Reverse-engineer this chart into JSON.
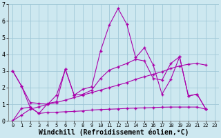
{
  "background_color": "#cde8f0",
  "grid_color": "#a0c8d8",
  "line_color": "#aa00aa",
  "marker": "+",
  "xlabel": "Windchill (Refroidissement éolien,°C)",
  "xlim": [
    -0.5,
    23.5
  ],
  "ylim": [
    0,
    7
  ],
  "xticks": [
    0,
    1,
    2,
    3,
    4,
    5,
    6,
    7,
    8,
    9,
    10,
    11,
    12,
    13,
    14,
    15,
    16,
    17,
    18,
    19,
    20,
    21,
    22,
    23
  ],
  "yticks": [
    0,
    1,
    2,
    3,
    4,
    5,
    6,
    7
  ],
  "series1": [
    3.0,
    2.1,
    0.8,
    0.45,
    1.05,
    1.15,
    3.1,
    1.55,
    1.9,
    2.05,
    4.2,
    5.75,
    6.75,
    5.8,
    3.8,
    4.4,
    3.35,
    1.6,
    2.5,
    3.85,
    1.5,
    1.6,
    0.7
  ],
  "series2": [
    3.0,
    2.1,
    1.1,
    1.05,
    1.0,
    1.55,
    3.1,
    1.55,
    1.6,
    1.85,
    2.55,
    3.05,
    3.25,
    3.45,
    3.7,
    3.6,
    2.55,
    2.45,
    3.45,
    3.85,
    1.5,
    1.6,
    0.7
  ],
  "series3": [
    0.0,
    0.75,
    0.82,
    0.45,
    0.5,
    0.52,
    0.55,
    0.57,
    0.6,
    0.65,
    0.68,
    0.7,
    0.72,
    0.75,
    0.77,
    0.78,
    0.8,
    0.82,
    0.83,
    0.83,
    0.83,
    0.83,
    0.7
  ],
  "series4": [
    0.0,
    0.35,
    0.7,
    0.85,
    1.0,
    1.1,
    1.25,
    1.4,
    1.55,
    1.7,
    1.85,
    2.0,
    2.15,
    2.3,
    2.5,
    2.65,
    2.8,
    2.95,
    3.15,
    3.3,
    3.4,
    3.45,
    3.35
  ],
  "font_family": "monospace",
  "xlabel_fontsize": 7,
  "tick_fontsize": 6
}
